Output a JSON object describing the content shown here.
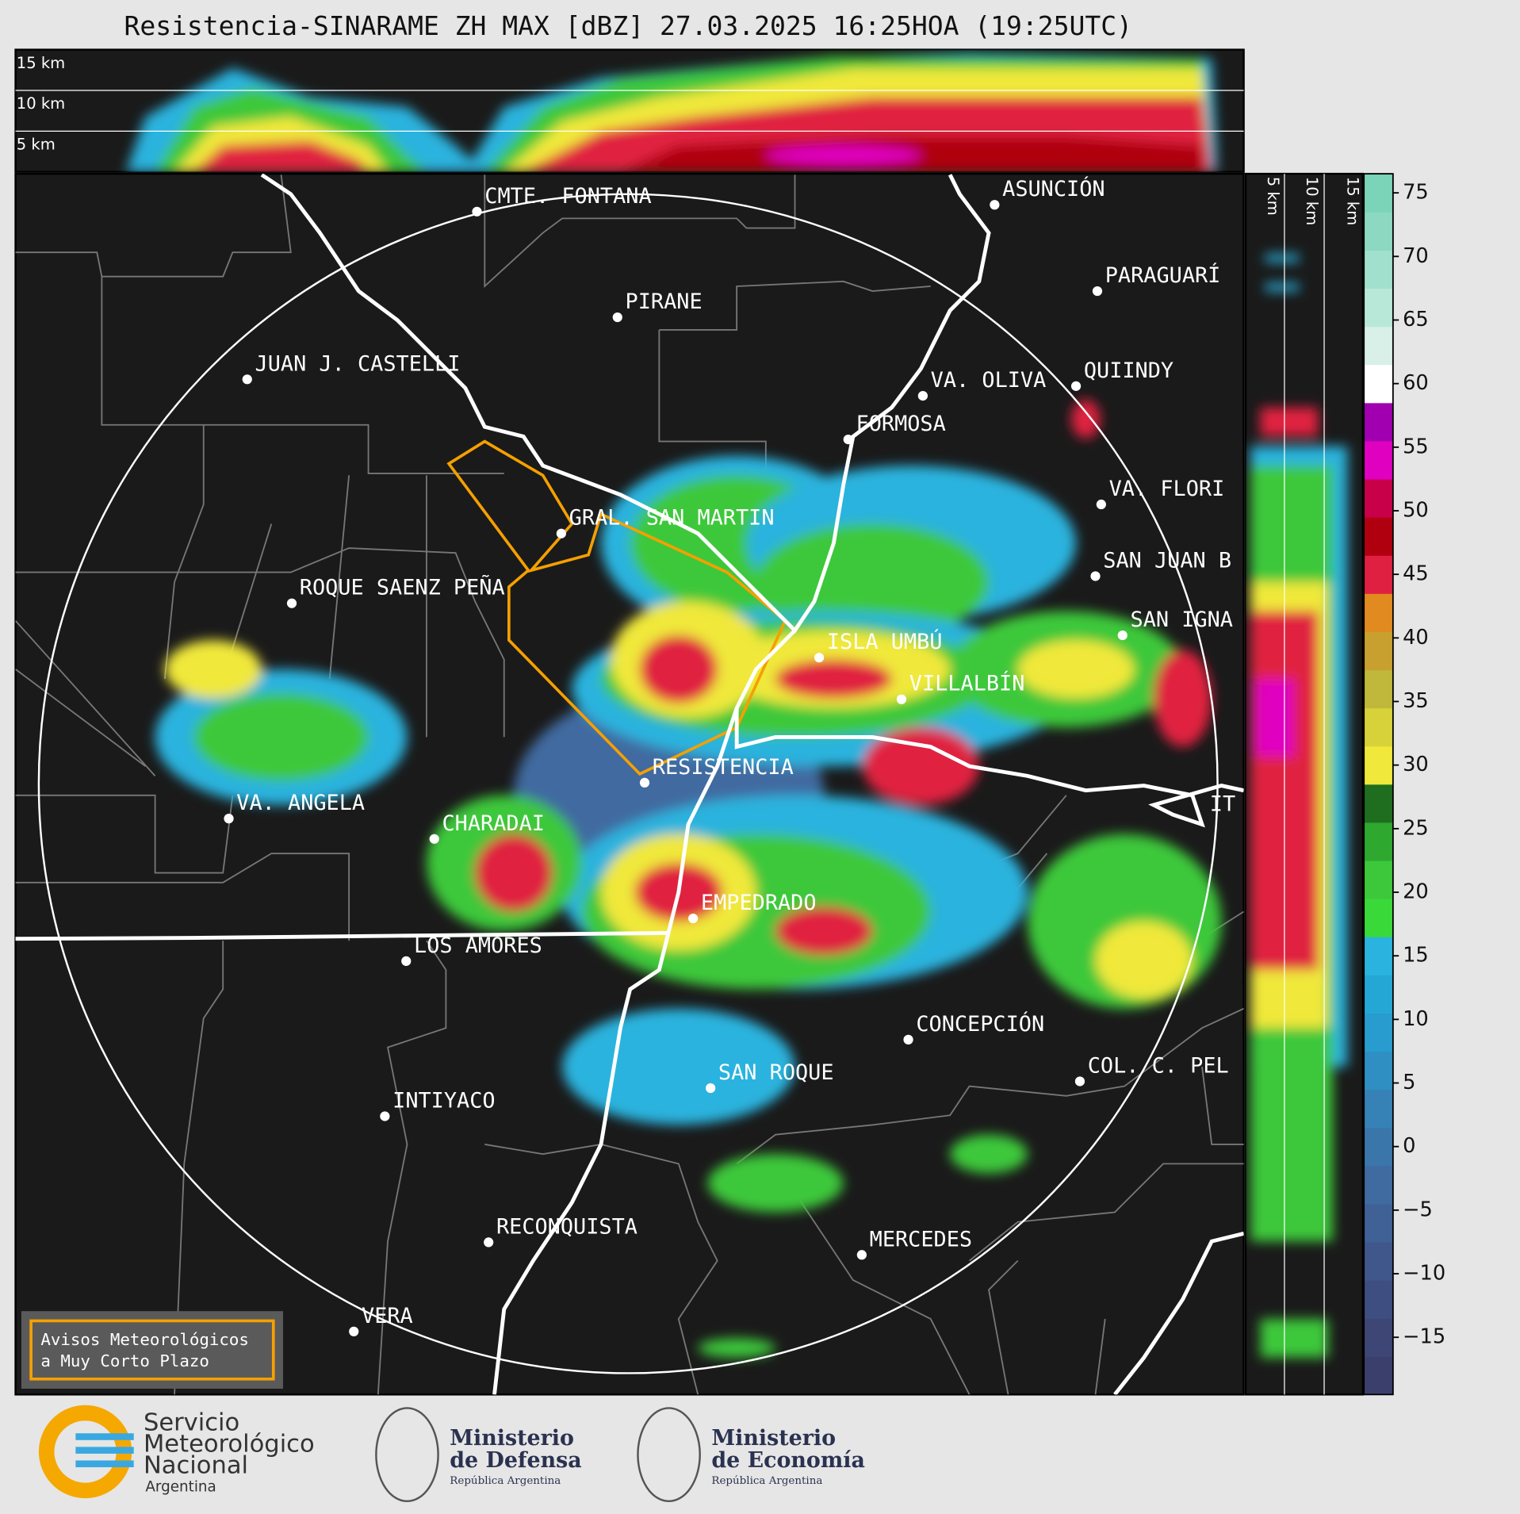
{
  "title": "Resistencia-SINARAME ZH MAX [dBZ] 27.03.2025 16:25HOA (19:25UTC)",
  "top_section": {
    "labels": [
      "15 km",
      "10 km",
      "5 km"
    ]
  },
  "side_section": {
    "labels": [
      "5 km",
      "10 km",
      "15 km"
    ]
  },
  "cities": [
    "CMTE. FONTANA",
    "ASUNCIÓN",
    "PARAGUARÍ",
    "PIRANE",
    "JUAN J. CASTELLI",
    "VA. OLIVA",
    "QUIINDY",
    "FORMOSA",
    "VA. FLORI",
    "GRAL. SAN MARTIN",
    "SAN JUAN B",
    "ROQUE SAENZ PEÑA",
    "SAN IGNA",
    "ISLA UMBÚ",
    "VILLALBÍN",
    "RESISTENCIA",
    "IT",
    "VA. ANGELA",
    "CHARADAI",
    "EMPEDRADO",
    "LOS AMORES",
    "CONCEPCIÓN",
    "SAN ROQUE",
    "COL. C. PEL",
    "INTIYACO",
    "RECONQUISTA",
    "MERCEDES",
    "VERA"
  ],
  "colorbar": {
    "lim": [
      -19.5,
      76.5
    ],
    "colors": [
      "#3b3f6b",
      "#3d4675",
      "#3f4e80",
      "#40578b",
      "#406195",
      "#3f6ba0",
      "#3b76ab",
      "#3682b6",
      "#2f8fc2",
      "#289cce",
      "#25a7d6",
      "#2ab3de",
      "#3ad93a",
      "#3cc83a",
      "#2fa82f",
      "#1f6e1f",
      "#f0e83a",
      "#d8d23a",
      "#c0b83a",
      "#c8a030",
      "#e08a20",
      "#e02040",
      "#b00010",
      "#c8004a",
      "#e000c0",
      "#a000b0",
      "#ffffff",
      "#d8f0e8",
      "#b8e8d8",
      "#a0e0cc",
      "#8cd8c0",
      "#7cd4b8"
    ],
    "ticks": [
      75,
      70,
      65,
      60,
      55,
      50,
      45,
      40,
      35,
      30,
      25,
      20,
      15,
      10,
      5,
      0,
      {
        "value": -5,
        "label": "−5"
      },
      {
        "value": -10,
        "label": "−10"
      },
      {
        "value": -15,
        "label": "−15"
      }
    ]
  },
  "warning_box": [
    "Avisos Meteorológicos",
    "a Muy Corto Plazo"
  ],
  "logos": {
    "smn": [
      "Servicio",
      "Meteorológico",
      "Nacional",
      "Argentina"
    ],
    "defensa": [
      "Ministerio",
      "de Defensa",
      "República Argentina"
    ],
    "economia": [
      "Ministerio",
      "de Economía",
      "República Argentina"
    ]
  }
}
